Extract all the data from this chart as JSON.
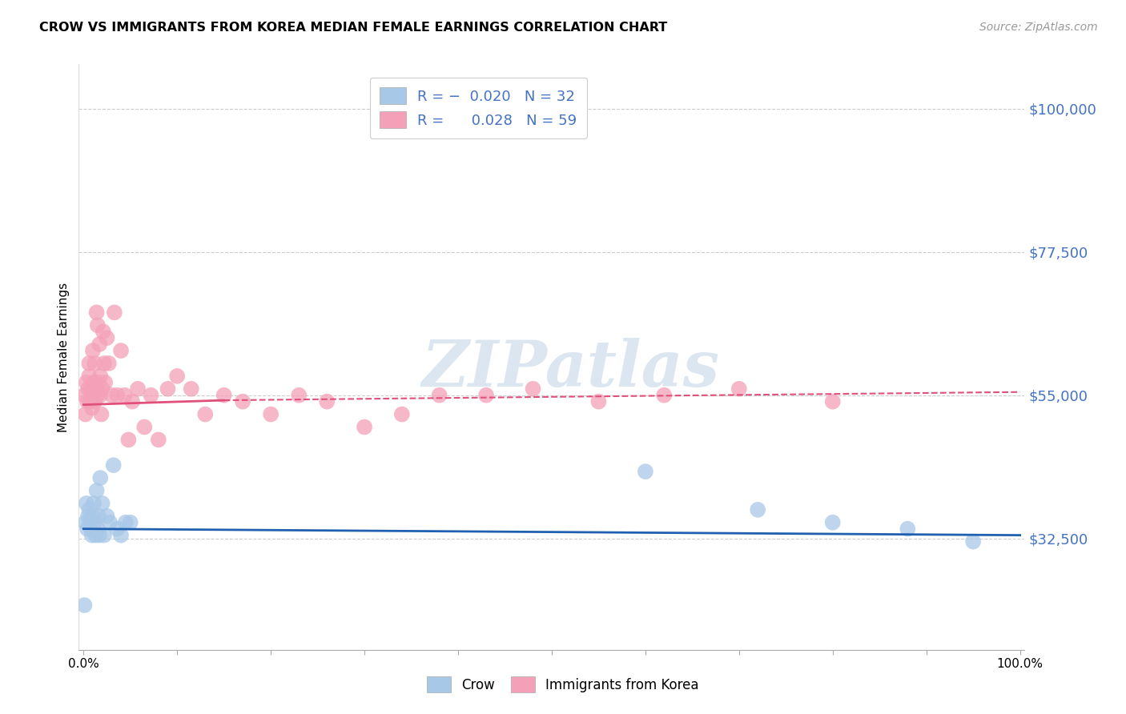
{
  "title": "CROW VS IMMIGRANTS FROM KOREA MEDIAN FEMALE EARNINGS CORRELATION CHART",
  "source": "Source: ZipAtlas.com",
  "ylabel": "Median Female Earnings",
  "ytick_labels": [
    "$32,500",
    "$55,000",
    "$77,500",
    "$100,000"
  ],
  "ytick_values": [
    32500,
    55000,
    77500,
    100000
  ],
  "ymin": 15000,
  "ymax": 107000,
  "xmin": -0.005,
  "xmax": 1.005,
  "crow_color": "#a8c8e8",
  "korea_color": "#f4a0b8",
  "crow_line_color": "#2060b0",
  "korea_line_color": "#e0507a",
  "watermark": "ZIPatlas",
  "background_color": "#ffffff",
  "grid_color": "#cccccc",
  "crow_R": "-0.020",
  "crow_N": "32",
  "korea_R": "0.028",
  "korea_N": "59",
  "crow_x": [
    0.001,
    0.002,
    0.003,
    0.004,
    0.005,
    0.006,
    0.007,
    0.008,
    0.009,
    0.01,
    0.011,
    0.012,
    0.013,
    0.014,
    0.015,
    0.016,
    0.017,
    0.018,
    0.02,
    0.022,
    0.025,
    0.028,
    0.032,
    0.036,
    0.04,
    0.045,
    0.05,
    0.6,
    0.72,
    0.8,
    0.88,
    0.95
  ],
  "crow_y": [
    22000,
    35000,
    38000,
    34000,
    36000,
    37000,
    35000,
    34000,
    33000,
    36000,
    38000,
    35000,
    33000,
    40000,
    34000,
    36000,
    33000,
    42000,
    38000,
    33000,
    36000,
    35000,
    44000,
    34000,
    33000,
    35000,
    35000,
    43000,
    37000,
    35000,
    34000,
    32000
  ],
  "korea_x": [
    0.001,
    0.002,
    0.003,
    0.004,
    0.005,
    0.006,
    0.006,
    0.007,
    0.008,
    0.009,
    0.01,
    0.01,
    0.011,
    0.012,
    0.012,
    0.013,
    0.014,
    0.015,
    0.015,
    0.016,
    0.017,
    0.018,
    0.018,
    0.019,
    0.02,
    0.021,
    0.022,
    0.023,
    0.025,
    0.027,
    0.03,
    0.033,
    0.036,
    0.04,
    0.044,
    0.048,
    0.052,
    0.058,
    0.065,
    0.072,
    0.08,
    0.09,
    0.1,
    0.115,
    0.13,
    0.15,
    0.17,
    0.2,
    0.23,
    0.26,
    0.3,
    0.34,
    0.38,
    0.43,
    0.48,
    0.55,
    0.62,
    0.7,
    0.8
  ],
  "korea_y": [
    55000,
    52000,
    57000,
    54000,
    56000,
    58000,
    60000,
    54000,
    56000,
    53000,
    55000,
    62000,
    57000,
    54000,
    60000,
    56000,
    68000,
    55000,
    66000,
    57000,
    63000,
    58000,
    55000,
    52000,
    56000,
    65000,
    60000,
    57000,
    64000,
    60000,
    55000,
    68000,
    55000,
    62000,
    55000,
    48000,
    54000,
    56000,
    50000,
    55000,
    48000,
    56000,
    58000,
    56000,
    52000,
    55000,
    54000,
    52000,
    55000,
    54000,
    50000,
    52000,
    55000,
    55000,
    56000,
    54000,
    55000,
    56000,
    54000
  ]
}
